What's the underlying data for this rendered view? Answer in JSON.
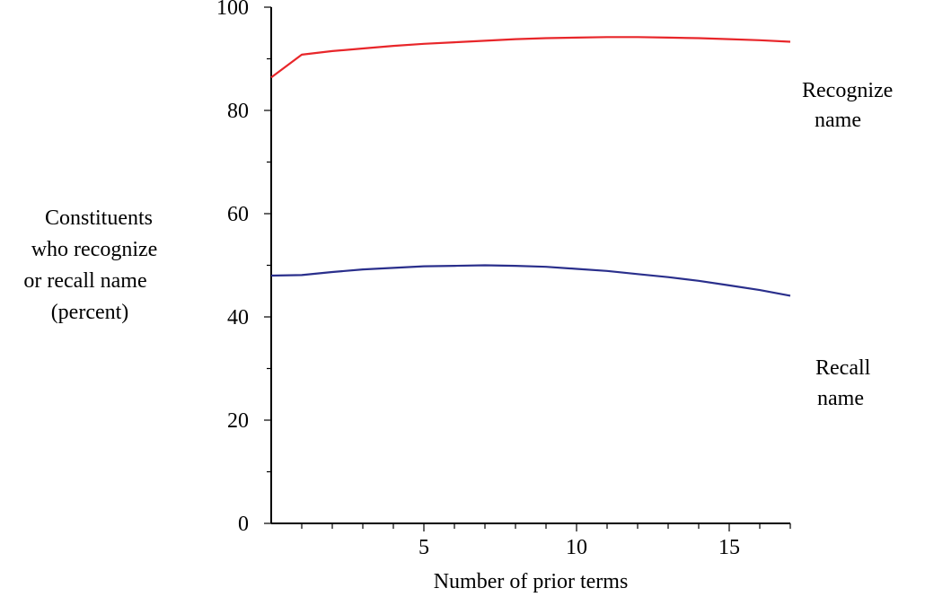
{
  "chart_data": {
    "type": "line",
    "title": "",
    "xlabel": "Number of prior terms",
    "ylabel_lines": [
      "Constituents",
      "who recognize",
      "or recall name",
      "(percent)"
    ],
    "xlim": [
      0,
      17
    ],
    "ylim": [
      0,
      100
    ],
    "x_ticks": [
      5,
      10,
      15
    ],
    "y_ticks": [
      0,
      20,
      40,
      60,
      80,
      100
    ],
    "x_minor_step": 1,
    "y_minor_step": 10,
    "grid": false,
    "legend": "none",
    "series": [
      {
        "name_lines": [
          "Recognize",
          "name"
        ],
        "color": "#e8262a",
        "x": [
          0,
          1,
          2,
          3,
          4,
          5,
          6,
          7,
          8,
          9,
          10,
          11,
          12,
          13,
          14,
          15,
          16,
          17
        ],
        "values": [
          86.4,
          90.8,
          91.5,
          92.0,
          92.5,
          92.9,
          93.2,
          93.5,
          93.8,
          94.0,
          94.1,
          94.2,
          94.2,
          94.1,
          94.0,
          93.8,
          93.6,
          93.3
        ]
      },
      {
        "name_lines": [
          "Recall",
          "name"
        ],
        "color": "#2a2f8c",
        "x": [
          0,
          1,
          2,
          3,
          4,
          5,
          6,
          7,
          8,
          9,
          10,
          11,
          12,
          13,
          14,
          15,
          16,
          17
        ],
        "values": [
          48.0,
          48.1,
          48.7,
          49.2,
          49.5,
          49.8,
          49.9,
          50.0,
          49.9,
          49.7,
          49.3,
          48.9,
          48.3,
          47.7,
          47.0,
          46.1,
          45.2,
          44.1
        ]
      }
    ]
  }
}
